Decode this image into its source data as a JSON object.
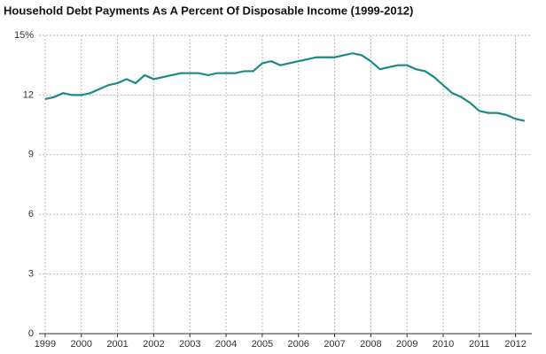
{
  "chart_data": {
    "type": "line",
    "title": "Household Debt Payments As A Percent Of Disposable Income (1999-2012)",
    "x": [
      1999,
      1999.25,
      1999.5,
      1999.75,
      2000,
      2000.25,
      2000.5,
      2000.75,
      2001,
      2001.25,
      2001.5,
      2001.75,
      2002,
      2002.25,
      2002.5,
      2002.75,
      2003,
      2003.25,
      2003.5,
      2003.75,
      2004,
      2004.25,
      2004.5,
      2004.75,
      2005,
      2005.25,
      2005.5,
      2005.75,
      2006,
      2006.25,
      2006.5,
      2006.75,
      2007,
      2007.25,
      2007.5,
      2007.75,
      2008,
      2008.25,
      2008.5,
      2008.75,
      2009,
      2009.25,
      2009.5,
      2009.75,
      2010,
      2010.25,
      2010.5,
      2010.75,
      2011,
      2011.25,
      2011.5,
      2011.75,
      2012,
      2012.25
    ],
    "series": [
      {
        "color": "#1b8a85",
        "values": [
          11.8,
          11.9,
          12.1,
          12.0,
          12.0,
          12.1,
          12.3,
          12.5,
          12.6,
          12.8,
          12.6,
          13.0,
          12.8,
          12.9,
          13.0,
          13.1,
          13.1,
          13.1,
          13.0,
          13.1,
          13.1,
          13.1,
          13.2,
          13.2,
          13.6,
          13.7,
          13.5,
          13.6,
          13.7,
          13.8,
          13.9,
          13.9,
          13.9,
          14.0,
          14.1,
          14.0,
          13.7,
          13.3,
          13.4,
          13.5,
          13.5,
          13.3,
          13.2,
          12.9,
          12.5,
          12.1,
          11.9,
          11.6,
          11.2,
          11.1,
          11.1,
          11.0,
          10.8,
          10.7
        ]
      }
    ],
    "xlim": [
      1998.83,
      2012.45
    ],
    "xticks": [
      1999,
      2000,
      2001,
      2002,
      2003,
      2004,
      2005,
      2006,
      2007,
      2008,
      2009,
      2010,
      2011,
      2012
    ],
    "ylim": [
      0,
      15
    ],
    "yticks": [
      0,
      3,
      6,
      9,
      12,
      {
        "value": 15,
        "label": "15%"
      }
    ],
    "grid": true
  }
}
